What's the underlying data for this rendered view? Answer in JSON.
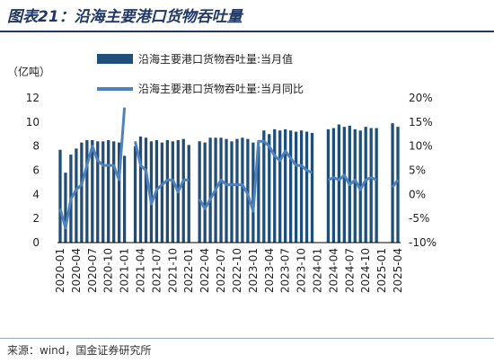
{
  "header": {
    "title": "图表21：沿海主要港口货物吞吐量",
    "source": "来源：wind，国金证券研究所"
  },
  "colors": {
    "bar": "#1f4e79",
    "line": "#4f81bd"
  },
  "chart_data": {
    "type": "bar+line",
    "unit_label": "（亿吨）",
    "series": [
      {
        "name": "沿海主要港口货物吞吐量:当月值",
        "type": "bar",
        "axis": "left"
      },
      {
        "name": "沿海主要港口货物吞吐量:当月同比",
        "type": "line",
        "axis": "right"
      }
    ],
    "left_axis": {
      "min": 0,
      "max": 12,
      "ticks": [
        "0",
        "2",
        "4",
        "6",
        "8",
        "10",
        "12"
      ]
    },
    "right_axis": {
      "min": -10,
      "max": 20,
      "ticks": [
        "-10%",
        "-5%",
        "0%",
        "5%",
        "10%",
        "15%",
        "20%"
      ]
    },
    "x_tick_labels": [
      "2020-01",
      "2020-04",
      "2020-07",
      "2020-10",
      "2021-01",
      "2021-04",
      "2021-07",
      "2021-10",
      "2022-01",
      "2022-04",
      "2022-07",
      "2022-10",
      "2023-01",
      "2023-04",
      "2023-07",
      "2023-10",
      "2024-01",
      "2024-04",
      "2024-07",
      "2024-10",
      "2025-01",
      "2025-04"
    ],
    "points": [
      {
        "x": "2020-01",
        "bar": 7.7,
        "yoy": -3.0
      },
      {
        "x": "2020-02",
        "bar": 5.8,
        "yoy": -7.0
      },
      {
        "x": "2020-03",
        "bar": 7.3,
        "yoy": -1.0
      },
      {
        "x": "2020-04",
        "bar": 7.8,
        "yoy": 1.0
      },
      {
        "x": "2020-05",
        "bar": 8.3,
        "yoy": 2.0
      },
      {
        "x": "2020-06",
        "bar": 8.5,
        "yoy": 6.0
      },
      {
        "x": "2020-07",
        "bar": 8.5,
        "yoy": 10.0
      },
      {
        "x": "2020-08",
        "bar": 8.4,
        "yoy": 7.0
      },
      {
        "x": "2020-09",
        "bar": 8.4,
        "yoy": 6.0
      },
      {
        "x": "2020-10",
        "bar": 8.5,
        "yoy": 6.0
      },
      {
        "x": "2020-11",
        "bar": 8.4,
        "yoy": 6.0
      },
      {
        "x": "2020-12",
        "bar": 8.3,
        "yoy": 3.0
      },
      {
        "x": "2021-01",
        "bar": 7.2,
        "yoy": 18.0
      },
      {
        "x": "2021-02",
        "bar": null,
        "yoy": null
      },
      {
        "x": "2021-03",
        "bar": 8.0,
        "yoy": 11.0
      },
      {
        "x": "2021-04",
        "bar": 8.8,
        "yoy": 6.0
      },
      {
        "x": "2021-05",
        "bar": 8.7,
        "yoy": 5.0
      },
      {
        "x": "2021-06",
        "bar": 8.4,
        "yoy": -2.0
      },
      {
        "x": "2021-07",
        "bar": 8.5,
        "yoy": 1.0
      },
      {
        "x": "2021-08",
        "bar": 8.3,
        "yoy": 2.0
      },
      {
        "x": "2021-09",
        "bar": 8.5,
        "yoy": 3.0
      },
      {
        "x": "2021-10",
        "bar": 8.4,
        "yoy": 3.0
      },
      {
        "x": "2021-11",
        "bar": 8.5,
        "yoy": 0.5
      },
      {
        "x": "2021-12",
        "bar": 8.6,
        "yoy": 3.0
      },
      {
        "x": "2022-01",
        "bar": 8.1,
        "yoy": 3.0
      },
      {
        "x": "2022-02",
        "bar": null,
        "yoy": null
      },
      {
        "x": "2022-03",
        "bar": 8.4,
        "yoy": -1.0
      },
      {
        "x": "2022-04",
        "bar": 8.3,
        "yoy": -3.0
      },
      {
        "x": "2022-05",
        "bar": 8.7,
        "yoy": -1.0
      },
      {
        "x": "2022-06",
        "bar": 8.7,
        "yoy": 1.0
      },
      {
        "x": "2022-07",
        "bar": 8.7,
        "yoy": 3.0
      },
      {
        "x": "2022-08",
        "bar": 8.6,
        "yoy": 2.0
      },
      {
        "x": "2022-09",
        "bar": 8.4,
        "yoy": 2.0
      },
      {
        "x": "2022-10",
        "bar": 8.6,
        "yoy": 2.0
      },
      {
        "x": "2022-11",
        "bar": 8.7,
        "yoy": 2.0
      },
      {
        "x": "2022-12",
        "bar": 8.6,
        "yoy": 0.0
      },
      {
        "x": "2023-01",
        "bar": 8.3,
        "yoy": -3.5
      },
      {
        "x": "2023-02",
        "bar": 8.0,
        "yoy": 11.0
      },
      {
        "x": "2023-03",
        "bar": 9.3,
        "yoy": 11.0
      },
      {
        "x": "2023-04",
        "bar": 9.0,
        "yoy": 10.0
      },
      {
        "x": "2023-05",
        "bar": 9.4,
        "yoy": 8.0
      },
      {
        "x": "2023-06",
        "bar": 9.3,
        "yoy": 7.0
      },
      {
        "x": "2023-07",
        "bar": 9.4,
        "yoy": 9.0
      },
      {
        "x": "2023-08",
        "bar": 9.3,
        "yoy": 7.5
      },
      {
        "x": "2023-09",
        "bar": 9.2,
        "yoy": 6.0
      },
      {
        "x": "2023-10",
        "bar": 9.3,
        "yoy": 6.0
      },
      {
        "x": "2023-11",
        "bar": 9.2,
        "yoy": 5.0
      },
      {
        "x": "2023-12",
        "bar": 9.1,
        "yoy": 4.5
      },
      {
        "x": "2024-01",
        "bar": null,
        "yoy": null
      },
      {
        "x": "2024-02",
        "bar": null,
        "yoy": null
      },
      {
        "x": "2024-03",
        "bar": 9.4,
        "yoy": 3.0
      },
      {
        "x": "2024-04",
        "bar": 9.5,
        "yoy": 3.5
      },
      {
        "x": "2024-05",
        "bar": 9.8,
        "yoy": 3.0
      },
      {
        "x": "2024-06",
        "bar": 9.6,
        "yoy": 4.0
      },
      {
        "x": "2024-07",
        "bar": 9.7,
        "yoy": 2.0
      },
      {
        "x": "2024-08",
        "bar": 9.4,
        "yoy": 3.0
      },
      {
        "x": "2024-09",
        "bar": 9.3,
        "yoy": 1.0
      },
      {
        "x": "2024-10",
        "bar": 9.6,
        "yoy": 3.0
      },
      {
        "x": "2024-11",
        "bar": 9.5,
        "yoy": 3.5
      },
      {
        "x": "2024-12",
        "bar": 9.5,
        "yoy": 3.0
      },
      {
        "x": "2025-01",
        "bar": null,
        "yoy": null
      },
      {
        "x": "2025-02",
        "bar": null,
        "yoy": null
      },
      {
        "x": "2025-03",
        "bar": 9.9,
        "yoy": 1.5
      },
      {
        "x": "2025-04",
        "bar": 9.6,
        "yoy": 3.0
      }
    ]
  }
}
